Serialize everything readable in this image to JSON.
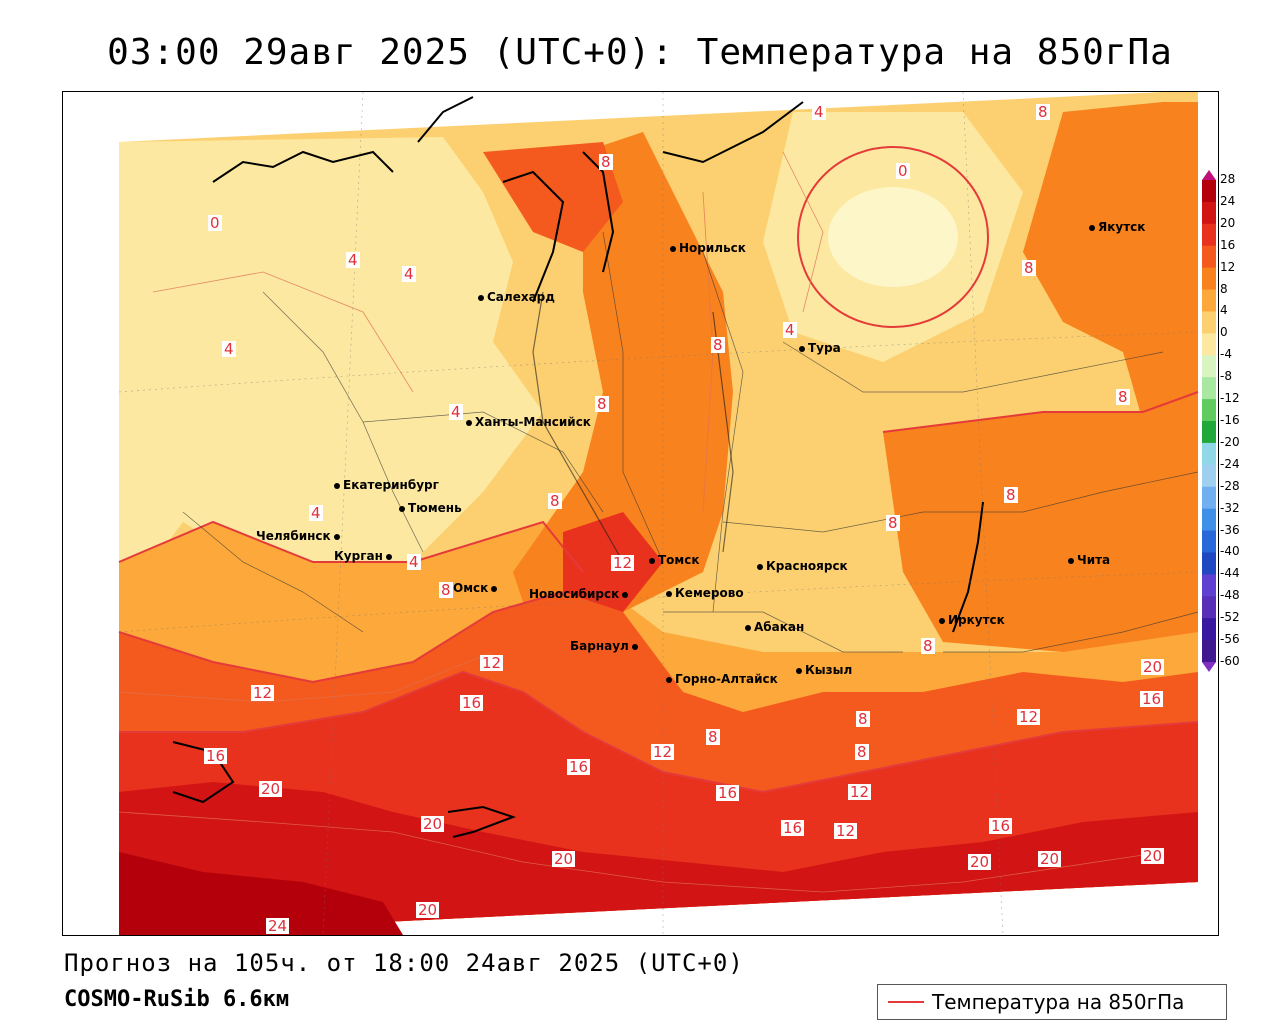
{
  "title": "03:00 29авг 2025 (UTC+0): Температура на 850гПа",
  "forecast_line": "Прогноз на 105ч. от 18:00 24авг 2025 (UTC+0)",
  "model_name": "COSMO-RuSib 6.6км",
  "legend": {
    "label": "Температура на 850гПа",
    "line_color": "#e53a3a"
  },
  "colorbar": {
    "ticks": [
      "28",
      "24",
      "20",
      "16",
      "12",
      "8",
      "4",
      "0",
      "-4",
      "-8",
      "-12",
      "-16",
      "-20",
      "-24",
      "-28",
      "-32",
      "-36",
      "-40",
      "-44",
      "-48",
      "-52",
      "-56",
      "-60"
    ],
    "colors": [
      "#b4000a",
      "#d21414",
      "#e8321e",
      "#f45a1e",
      "#f8821e",
      "#fca83a",
      "#fcd070",
      "#fce8a0",
      "#d8f4c0",
      "#a8e8a0",
      "#60cc60",
      "#20a83a",
      "#90d8e8",
      "#a0d0f0",
      "#70b0f0",
      "#4090e8",
      "#2868d8",
      "#2048c0",
      "#6040d0",
      "#5830b8",
      "#3818a0",
      "#401890"
    ]
  },
  "cities": [
    {
      "name": "Норильск"
    },
    {
      "name": "Якутск"
    },
    {
      "name": "Салехард"
    },
    {
      "name": "Тура"
    },
    {
      "name": "Ханты-Мансийск"
    },
    {
      "name": "Екатеринбург"
    },
    {
      "name": "Тюмень"
    },
    {
      "name": "Челябинск"
    },
    {
      "name": "Курган"
    },
    {
      "name": "Томск"
    },
    {
      "name": "Красноярск"
    },
    {
      "name": "Чита"
    },
    {
      "name": "Омск"
    },
    {
      "name": "Новосибирск"
    },
    {
      "name": "Кемерово"
    },
    {
      "name": "Иркутск"
    },
    {
      "name": "Абакан"
    },
    {
      "name": "Барнаул"
    },
    {
      "name": "Кызыл"
    },
    {
      "name": "Горно-Алтайск"
    }
  ],
  "contour_labels": [
    "4",
    "8",
    "0",
    "8",
    "0",
    "4",
    "4",
    "8",
    "4",
    "4",
    "4",
    "8",
    "8",
    "8",
    "8",
    "8",
    "8",
    "4",
    "4",
    "12",
    "8",
    "8",
    "12",
    "12",
    "16",
    "16",
    "16",
    "20",
    "16",
    "12",
    "12",
    "16",
    "8",
    "8",
    "8",
    "12",
    "16",
    "16",
    "12",
    "20",
    "20",
    "20",
    "20",
    "20",
    "20",
    "20",
    "24"
  ]
}
